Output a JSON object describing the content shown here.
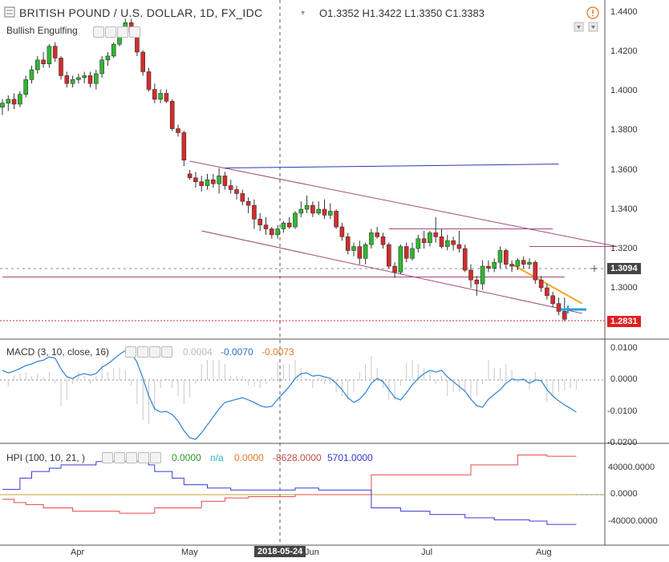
{
  "header": {
    "title": "BRITISH POUND / U.S. DOLLAR, 1D, FX_IDC",
    "ohlc": "O1.3352  H1.3422  L1.3350  C1.3383",
    "study_label": "Bullish Engulfing"
  },
  "price_axis": {
    "ticks": [
      "1.4400",
      "1.4200",
      "1.4000",
      "1.3800",
      "1.3600",
      "1.3400",
      "1.3200",
      "1.3000"
    ],
    "last_price": "1.3094",
    "marker_price": "1.2831"
  },
  "macd": {
    "label": "MACD (3, 10, close, 16)",
    "v_hist": "0.0004",
    "v_macd": "-0.0070",
    "v_signal": "-0.0073",
    "ticks": [
      "0.0100",
      "0.0000",
      "-0.0100",
      "-0.0200"
    ]
  },
  "hpi": {
    "label": "HPI (100, 10, 21, )",
    "v1": "0.0000",
    "v2": "n/a",
    "v3": "0.0000",
    "v4": "-8628.0000",
    "v5": "5701.0000",
    "ticks": [
      "40000.0000",
      "0.0000",
      "-40000.0000"
    ]
  },
  "time_axis": {
    "labels": [
      "Apr",
      "May",
      "Jun",
      "Jul",
      "Aug"
    ],
    "crosshair_date": "2018-05-24"
  },
  "colors": {
    "up": "#2fb82f",
    "down": "#d62b2b",
    "macd_line": "#3a8ad6",
    "hpi_line_a": "#e84a4a",
    "hpi_line_b": "#3a3ad6",
    "channel": "#a24a7a",
    "trend_blue": "#2b3bb0"
  },
  "chart_data": {
    "type": "candlestick",
    "title": "BRITISH POUND / U.S. DOLLAR, 1D, FX_IDC",
    "y_range": [
      1.284,
      1.444
    ],
    "candles": [
      {
        "o": 1.392,
        "h": 1.396,
        "l": 1.388,
        "c": 1.394
      },
      {
        "o": 1.394,
        "h": 1.398,
        "l": 1.39,
        "c": 1.396
      },
      {
        "o": 1.396,
        "h": 1.399,
        "l": 1.391,
        "c": 1.3935
      },
      {
        "o": 1.3935,
        "h": 1.4,
        "l": 1.392,
        "c": 1.3985
      },
      {
        "o": 1.3985,
        "h": 1.408,
        "l": 1.397,
        "c": 1.406
      },
      {
        "o": 1.406,
        "h": 1.413,
        "l": 1.404,
        "c": 1.411
      },
      {
        "o": 1.411,
        "h": 1.418,
        "l": 1.409,
        "c": 1.416
      },
      {
        "o": 1.416,
        "h": 1.42,
        "l": 1.412,
        "c": 1.414
      },
      {
        "o": 1.414,
        "h": 1.424,
        "l": 1.412,
        "c": 1.423
      },
      {
        "o": 1.423,
        "h": 1.425,
        "l": 1.415,
        "c": 1.417
      },
      {
        "o": 1.417,
        "h": 1.418,
        "l": 1.406,
        "c": 1.408
      },
      {
        "o": 1.408,
        "h": 1.41,
        "l": 1.402,
        "c": 1.404
      },
      {
        "o": 1.404,
        "h": 1.408,
        "l": 1.402,
        "c": 1.406
      },
      {
        "o": 1.406,
        "h": 1.409,
        "l": 1.404,
        "c": 1.407
      },
      {
        "o": 1.407,
        "h": 1.41,
        "l": 1.404,
        "c": 1.408
      },
      {
        "o": 1.408,
        "h": 1.41,
        "l": 1.402,
        "c": 1.404
      },
      {
        "o": 1.404,
        "h": 1.411,
        "l": 1.401,
        "c": 1.409
      },
      {
        "o": 1.409,
        "h": 1.418,
        "l": 1.407,
        "c": 1.416
      },
      {
        "o": 1.416,
        "h": 1.42,
        "l": 1.413,
        "c": 1.418
      },
      {
        "o": 1.418,
        "h": 1.425,
        "l": 1.417,
        "c": 1.424
      },
      {
        "o": 1.424,
        "h": 1.433,
        "l": 1.423,
        "c": 1.431
      },
      {
        "o": 1.431,
        "h": 1.437,
        "l": 1.429,
        "c": 1.435
      },
      {
        "o": 1.435,
        "h": 1.437,
        "l": 1.428,
        "c": 1.43
      },
      {
        "o": 1.43,
        "h": 1.432,
        "l": 1.418,
        "c": 1.42
      },
      {
        "o": 1.42,
        "h": 1.421,
        "l": 1.408,
        "c": 1.41
      },
      {
        "o": 1.41,
        "h": 1.412,
        "l": 1.4,
        "c": 1.401
      },
      {
        "o": 1.401,
        "h": 1.404,
        "l": 1.394,
        "c": 1.396
      },
      {
        "o": 1.396,
        "h": 1.401,
        "l": 1.394,
        "c": 1.399
      },
      {
        "o": 1.399,
        "h": 1.401,
        "l": 1.394,
        "c": 1.395
      },
      {
        "o": 1.395,
        "h": 1.396,
        "l": 1.38,
        "c": 1.381
      },
      {
        "o": 1.381,
        "h": 1.383,
        "l": 1.377,
        "c": 1.379
      },
      {
        "o": 1.379,
        "h": 1.38,
        "l": 1.362,
        "c": 1.365
      },
      {
        "o": 1.358,
        "h": 1.36,
        "l": 1.355,
        "c": 1.356
      },
      {
        "o": 1.356,
        "h": 1.359,
        "l": 1.351,
        "c": 1.354
      },
      {
        "o": 1.354,
        "h": 1.357,
        "l": 1.349,
        "c": 1.352
      },
      {
        "o": 1.352,
        "h": 1.358,
        "l": 1.35,
        "c": 1.355
      },
      {
        "o": 1.355,
        "h": 1.358,
        "l": 1.351,
        "c": 1.353
      },
      {
        "o": 1.353,
        "h": 1.361,
        "l": 1.348,
        "c": 1.357
      },
      {
        "o": 1.357,
        "h": 1.359,
        "l": 1.35,
        "c": 1.352
      },
      {
        "o": 1.352,
        "h": 1.355,
        "l": 1.348,
        "c": 1.35
      },
      {
        "o": 1.35,
        "h": 1.352,
        "l": 1.345,
        "c": 1.348
      },
      {
        "o": 1.348,
        "h": 1.35,
        "l": 1.342,
        "c": 1.344
      },
      {
        "o": 1.344,
        "h": 1.346,
        "l": 1.338,
        "c": 1.342
      },
      {
        "o": 1.342,
        "h": 1.345,
        "l": 1.33,
        "c": 1.335
      },
      {
        "o": 1.335,
        "h": 1.338,
        "l": 1.329,
        "c": 1.332
      },
      {
        "o": 1.332,
        "h": 1.336,
        "l": 1.327,
        "c": 1.33
      },
      {
        "o": 1.33,
        "h": 1.331,
        "l": 1.325,
        "c": 1.327
      },
      {
        "o": 1.327,
        "h": 1.332,
        "l": 1.325,
        "c": 1.33
      },
      {
        "o": 1.33,
        "h": 1.334,
        "l": 1.328,
        "c": 1.333
      },
      {
        "o": 1.333,
        "h": 1.336,
        "l": 1.33,
        "c": 1.331
      },
      {
        "o": 1.331,
        "h": 1.339,
        "l": 1.33,
        "c": 1.338
      },
      {
        "o": 1.338,
        "h": 1.344,
        "l": 1.336,
        "c": 1.34
      },
      {
        "o": 1.34,
        "h": 1.347,
        "l": 1.338,
        "c": 1.342
      },
      {
        "o": 1.342,
        "h": 1.344,
        "l": 1.336,
        "c": 1.338
      },
      {
        "o": 1.338,
        "h": 1.344,
        "l": 1.337,
        "c": 1.34
      },
      {
        "o": 1.34,
        "h": 1.345,
        "l": 1.335,
        "c": 1.337
      },
      {
        "o": 1.337,
        "h": 1.343,
        "l": 1.335,
        "c": 1.339
      },
      {
        "o": 1.339,
        "h": 1.34,
        "l": 1.33,
        "c": 1.331
      },
      {
        "o": 1.331,
        "h": 1.333,
        "l": 1.324,
        "c": 1.326
      },
      {
        "o": 1.326,
        "h": 1.328,
        "l": 1.317,
        "c": 1.319
      },
      {
        "o": 1.319,
        "h": 1.323,
        "l": 1.316,
        "c": 1.321
      },
      {
        "o": 1.321,
        "h": 1.324,
        "l": 1.312,
        "c": 1.315
      },
      {
        "o": 1.315,
        "h": 1.323,
        "l": 1.312,
        "c": 1.322
      },
      {
        "o": 1.322,
        "h": 1.33,
        "l": 1.32,
        "c": 1.328
      },
      {
        "o": 1.328,
        "h": 1.331,
        "l": 1.325,
        "c": 1.326
      },
      {
        "o": 1.326,
        "h": 1.328,
        "l": 1.32,
        "c": 1.322
      },
      {
        "o": 1.322,
        "h": 1.323,
        "l": 1.31,
        "c": 1.311
      },
      {
        "o": 1.311,
        "h": 1.313,
        "l": 1.305,
        "c": 1.308
      },
      {
        "o": 1.308,
        "h": 1.322,
        "l": 1.307,
        "c": 1.321
      },
      {
        "o": 1.321,
        "h": 1.323,
        "l": 1.313,
        "c": 1.315
      },
      {
        "o": 1.315,
        "h": 1.323,
        "l": 1.314,
        "c": 1.32
      },
      {
        "o": 1.32,
        "h": 1.327,
        "l": 1.318,
        "c": 1.325
      },
      {
        "o": 1.325,
        "h": 1.329,
        "l": 1.32,
        "c": 1.323
      },
      {
        "o": 1.323,
        "h": 1.329,
        "l": 1.321,
        "c": 1.328
      },
      {
        "o": 1.328,
        "h": 1.336,
        "l": 1.323,
        "c": 1.326
      },
      {
        "o": 1.326,
        "h": 1.33,
        "l": 1.32,
        "c": 1.321
      },
      {
        "o": 1.321,
        "h": 1.327,
        "l": 1.319,
        "c": 1.324
      },
      {
        "o": 1.324,
        "h": 1.326,
        "l": 1.319,
        "c": 1.322
      },
      {
        "o": 1.322,
        "h": 1.329,
        "l": 1.318,
        "c": 1.32
      },
      {
        "o": 1.32,
        "h": 1.322,
        "l": 1.308,
        "c": 1.309
      },
      {
        "o": 1.309,
        "h": 1.312,
        "l": 1.3,
        "c": 1.304
      },
      {
        "o": 1.304,
        "h": 1.306,
        "l": 1.296,
        "c": 1.302
      },
      {
        "o": 1.302,
        "h": 1.314,
        "l": 1.299,
        "c": 1.311
      },
      {
        "o": 1.311,
        "h": 1.314,
        "l": 1.308,
        "c": 1.31
      },
      {
        "o": 1.31,
        "h": 1.315,
        "l": 1.308,
        "c": 1.313
      },
      {
        "o": 1.313,
        "h": 1.321,
        "l": 1.31,
        "c": 1.319
      },
      {
        "o": 1.319,
        "h": 1.32,
        "l": 1.31,
        "c": 1.312
      },
      {
        "o": 1.312,
        "h": 1.314,
        "l": 1.308,
        "c": 1.311
      },
      {
        "o": 1.311,
        "h": 1.315,
        "l": 1.309,
        "c": 1.314
      },
      {
        "o": 1.314,
        "h": 1.316,
        "l": 1.31,
        "c": 1.312
      },
      {
        "o": 1.312,
        "h": 1.315,
        "l": 1.31,
        "c": 1.313
      },
      {
        "o": 1.313,
        "h": 1.314,
        "l": 1.302,
        "c": 1.304
      },
      {
        "o": 1.304,
        "h": 1.306,
        "l": 1.298,
        "c": 1.3
      },
      {
        "o": 1.3,
        "h": 1.302,
        "l": 1.294,
        "c": 1.296
      },
      {
        "o": 1.296,
        "h": 1.298,
        "l": 1.29,
        "c": 1.292
      },
      {
        "o": 1.292,
        "h": 1.295,
        "l": 1.286,
        "c": 1.288
      },
      {
        "o": 1.288,
        "h": 1.295,
        "l": 1.283,
        "c": 1.284
      }
    ],
    "macd_series": [
      0.003,
      0.0022,
      0.0028,
      0.0036,
      0.0045,
      0.005,
      0.0058,
      0.0062,
      0.0072,
      0.0068,
      0.0035,
      0.001,
      0.0005,
      0.0015,
      0.002,
      0.0015,
      0.002,
      0.004,
      0.005,
      0.0065,
      0.008,
      0.0092,
      0.0085,
      0.0055,
      0.0005,
      -0.005,
      -0.009,
      -0.01,
      -0.0098,
      -0.0108,
      -0.0128,
      -0.0158,
      -0.018,
      -0.0185,
      -0.0165,
      -0.014,
      -0.0115,
      -0.009,
      -0.007,
      -0.0065,
      -0.006,
      -0.0055,
      -0.0062,
      -0.007,
      -0.008,
      -0.0085,
      -0.0082,
      -0.006,
      -0.004,
      -0.002,
      0.0005,
      0.002,
      0.0022,
      0.0012,
      0.0015,
      0.001,
      0.0005,
      -0.001,
      -0.003,
      -0.0055,
      -0.007,
      -0.006,
      -0.004,
      -0.001,
      0.0005,
      -0.0005,
      -0.003,
      -0.0055,
      -0.0062,
      -0.004,
      -0.0015,
      0.0005,
      0.002,
      0.003,
      0.0025,
      0.003,
      0.001,
      -0.0005,
      -0.002,
      -0.0035,
      -0.006,
      -0.008,
      -0.0085,
      -0.006,
      -0.0045,
      -0.003,
      -0.001,
      0.0003,
      0.0,
      0.0002,
      -0.001,
      0.0,
      -0.0002,
      -0.003,
      -0.005,
      -0.0065,
      -0.0078,
      -0.0088,
      -0.01
    ],
    "hpi_red": [
      -7000,
      -7000,
      -12000,
      -12000,
      -15000,
      -15000,
      -15000,
      -20000,
      -20000,
      -20000,
      -20000,
      -20000,
      -25000,
      -25000,
      -25000,
      -25000,
      -25000,
      -25000,
      -25000,
      -25000,
      -28000,
      -28000,
      -28000,
      -28000,
      -28000,
      -28000,
      -20000,
      -20000,
      -20000,
      -20000,
      -20000,
      -20000,
      -20000,
      -20000,
      -10000,
      -10000,
      -10000,
      -10000,
      -5000,
      -5000,
      -5000,
      -5000,
      -3000,
      -3000,
      -3000,
      -3000,
      -3000,
      -3000,
      -3000,
      -3000,
      0,
      0,
      0,
      0,
      0,
      0,
      0,
      0,
      0,
      0,
      0,
      0,
      0,
      30000,
      30000,
      30000,
      30000,
      30000,
      30000,
      30000,
      30000,
      30000,
      30000,
      30000,
      30000,
      30000,
      30000,
      30000,
      30000,
      30000,
      45000,
      45000,
      45000,
      45000,
      45000,
      45000,
      45000,
      45000,
      60000,
      60000,
      60000,
      60000,
      60000,
      58000,
      58000,
      58000,
      58000,
      58000,
      58000
    ],
    "hpi_blue": [
      8000,
      8000,
      8000,
      25000,
      25000,
      35000,
      35000,
      35000,
      40000,
      40000,
      45000,
      45000,
      45000,
      45000,
      45000,
      45000,
      50000,
      50000,
      50000,
      50000,
      50000,
      50000,
      50000,
      50000,
      50000,
      45000,
      35000,
      35000,
      35000,
      25000,
      25000,
      15000,
      15000,
      15000,
      15000,
      10000,
      10000,
      10000,
      10000,
      7000,
      7000,
      7000,
      7000,
      7000,
      7000,
      7000,
      7000,
      7000,
      7000,
      7000,
      10000,
      10000,
      10000,
      10000,
      7000,
      7000,
      7000,
      7000,
      7000,
      7000,
      7000,
      7000,
      7000,
      -20000,
      -20000,
      -20000,
      -20000,
      -20000,
      -25000,
      -25000,
      -25000,
      -25000,
      -25000,
      -30000,
      -30000,
      -30000,
      -30000,
      -30000,
      -30000,
      -35000,
      -35000,
      -35000,
      -35000,
      -35000,
      -38000,
      -38000,
      -38000,
      -38000,
      -38000,
      -38000,
      -40000,
      -40000,
      -40000,
      -45000,
      -45000,
      -45000,
      -45000,
      -45000,
      -45000
    ],
    "trendlines": [
      {
        "name": "channel_upper",
        "color": "#a24a7a",
        "from": [
          32,
          1.3645
        ],
        "to": [
          105,
          1.321
        ]
      },
      {
        "name": "channel_lower",
        "color": "#a24a7a",
        "from": [
          34,
          1.329
        ],
        "to": [
          99,
          1.287
        ]
      },
      {
        "name": "blue_trend",
        "color": "#2b3bb0",
        "from": [
          38,
          1.361
        ],
        "to": [
          95,
          1.363
        ]
      },
      {
        "name": "horizontal_1",
        "color": "#a24a7a",
        "from": [
          0,
          1.3055
        ],
        "to": [
          96,
          1.3055
        ]
      },
      {
        "name": "horizontal_2",
        "color": "#a24a7a",
        "from": [
          66,
          1.33
        ],
        "to": [
          94,
          1.33
        ]
      },
      {
        "name": "horizontal_3",
        "color": "#a24a7a",
        "from": [
          90,
          1.321
        ],
        "to": [
          105,
          1.321
        ]
      },
      {
        "name": "orange_projection",
        "color": "#f5a623",
        "from": [
          87,
          1.312
        ],
        "to": [
          99,
          1.292
        ]
      }
    ]
  }
}
